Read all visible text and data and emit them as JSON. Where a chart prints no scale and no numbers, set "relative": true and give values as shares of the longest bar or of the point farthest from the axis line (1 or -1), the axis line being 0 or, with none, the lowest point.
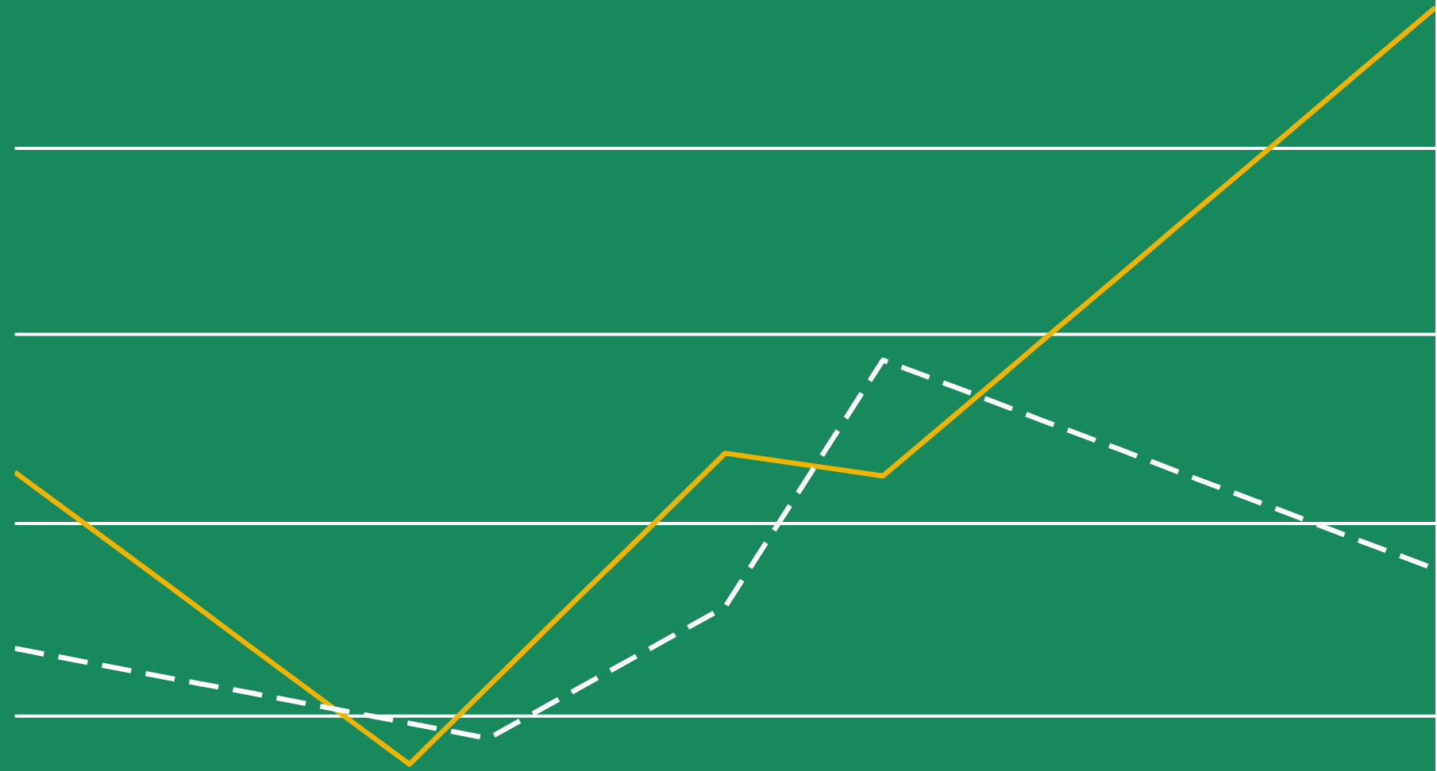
{
  "chart_data": {
    "type": "line",
    "relative": true,
    "grid": "y",
    "marker": "none",
    "categories": [
      null,
      null,
      null,
      null,
      null,
      null,
      null,
      null,
      null,
      null,
      null,
      null,
      null,
      null,
      null,
      null,
      null,
      null,
      null
    ],
    "series": [
      {
        "color": "#f0b400",
        "line_style": "solid",
        "values": [
          0.386,
          0.309,
          0.232,
          0.154,
          0.077,
          0,
          0.103,
          0.206,
          0.308,
          0.411,
          0.396,
          0.381,
          0.469,
          0.558,
          0.646,
          0.735,
          0.823,
          0.912,
          1.0
        ]
      },
      {
        "color": "#ffffff",
        "line_style": "dashed",
        "values": [
          0.153,
          0.133,
          0.113,
          0.094,
          0.074,
          0.054,
          0.034,
          0.092,
          0.15,
          0.208,
          0.371,
          0.534,
          0.495,
          0.455,
          0.416,
          0.376,
          0.337,
          0.297,
          0.258
        ]
      }
    ]
  }
}
